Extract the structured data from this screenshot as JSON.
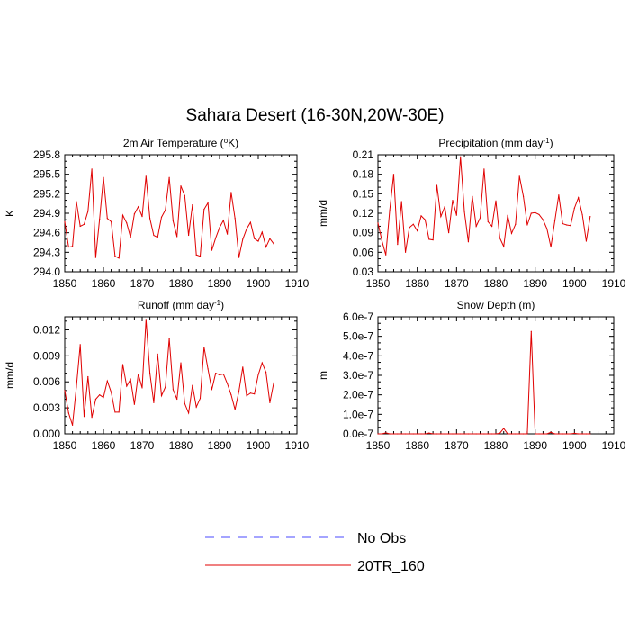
{
  "title": "Sahara Desert (16-30N,20W-30E)",
  "legend": {
    "entries": [
      {
        "label": "No Obs",
        "color": "#4a4aff",
        "dash": true
      },
      {
        "label": "20TR_160",
        "color": "#e00000",
        "dash": false
      }
    ]
  },
  "chart_data": [
    {
      "type": "line",
      "title": "2m Air Temperature (",
      "title_sup": "o",
      "title_end": "K)",
      "ylabel": "K",
      "xlim": [
        1850,
        1910
      ],
      "ylim": [
        294.0,
        295.8
      ],
      "x_ticks": [
        1850,
        1860,
        1870,
        1880,
        1890,
        1900,
        1910
      ],
      "y_ticks": [
        294.0,
        294.3,
        294.6,
        294.9,
        295.2,
        295.5,
        295.8
      ],
      "y_tick_labels": [
        "294.0",
        "294.3",
        "294.6",
        "294.9",
        "295.2",
        "295.5",
        "295.8"
      ],
      "series": [
        {
          "color": "#e00000",
          "x_start": 1850,
          "values": [
            294.77,
            294.38,
            294.39,
            295.08,
            294.7,
            294.73,
            294.93,
            295.58,
            294.22,
            294.81,
            295.45,
            294.82,
            294.77,
            294.24,
            294.21,
            294.87,
            294.75,
            294.53,
            294.89,
            295.0,
            294.85,
            295.47,
            294.82,
            294.56,
            294.53,
            294.84,
            294.95,
            295.45,
            294.78,
            294.54,
            295.32,
            295.17,
            294.56,
            295.03,
            294.26,
            294.24,
            294.96,
            295.06,
            294.33,
            294.52,
            294.68,
            294.79,
            294.58,
            295.22,
            294.82,
            294.22,
            294.5,
            294.66,
            294.76,
            294.51,
            294.47,
            294.61,
            294.38,
            294.51,
            294.43
          ]
        }
      ]
    },
    {
      "type": "line",
      "title": "Precipitation (mm day",
      "title_sup": "-1",
      "title_end": ")",
      "ylabel": "mm/d",
      "xlim": [
        1850,
        1910
      ],
      "ylim": [
        0.03,
        0.21
      ],
      "x_ticks": [
        1850,
        1860,
        1870,
        1880,
        1890,
        1900,
        1910
      ],
      "y_ticks": [
        0.03,
        0.06,
        0.09,
        0.12,
        0.15,
        0.18,
        0.21
      ],
      "y_tick_labels": [
        "0.03",
        "0.06",
        "0.09",
        "0.12",
        "0.15",
        "0.18",
        "0.21"
      ],
      "series": [
        {
          "color": "#e00000",
          "x_start": 1850,
          "values": [
            0.105,
            0.078,
            0.056,
            0.125,
            0.18,
            0.072,
            0.138,
            0.06,
            0.098,
            0.103,
            0.093,
            0.116,
            0.11,
            0.08,
            0.079,
            0.163,
            0.115,
            0.13,
            0.09,
            0.14,
            0.117,
            0.207,
            0.122,
            0.076,
            0.146,
            0.1,
            0.113,
            0.188,
            0.107,
            0.1,
            0.139,
            0.082,
            0.069,
            0.117,
            0.089,
            0.103,
            0.177,
            0.146,
            0.102,
            0.12,
            0.121,
            0.118,
            0.11,
            0.096,
            0.068,
            0.108,
            0.148,
            0.104,
            0.102,
            0.101,
            0.128,
            0.144,
            0.118,
            0.077,
            0.115
          ]
        }
      ]
    },
    {
      "type": "line",
      "title": "Runoff (mm day",
      "title_sup": "-1",
      "title_end": ")",
      "ylabel": "mm/d",
      "xlim": [
        1850,
        1910
      ],
      "ylim": [
        0.0,
        0.0135
      ],
      "x_ticks": [
        1850,
        1860,
        1870,
        1880,
        1890,
        1900,
        1910
      ],
      "y_ticks": [
        0.0,
        0.003,
        0.006,
        0.009,
        0.012
      ],
      "y_tick_labels": [
        "0.000",
        "0.003",
        "0.006",
        "0.009",
        "0.012"
      ],
      "series": [
        {
          "color": "#e00000",
          "x_start": 1850,
          "values": [
            0.005,
            0.0024,
            0.001,
            0.0054,
            0.0103,
            0.002,
            0.0066,
            0.0019,
            0.004,
            0.0045,
            0.0042,
            0.0061,
            0.0048,
            0.0025,
            0.0025,
            0.008,
            0.0055,
            0.0063,
            0.0034,
            0.0069,
            0.0053,
            0.0132,
            0.007,
            0.0036,
            0.0092,
            0.0044,
            0.0054,
            0.011,
            0.0051,
            0.004,
            0.0082,
            0.0035,
            0.0024,
            0.0056,
            0.0031,
            0.0041,
            0.01,
            0.0075,
            0.0051,
            0.007,
            0.0068,
            0.0069,
            0.0058,
            0.0045,
            0.0028,
            0.0049,
            0.0077,
            0.0044,
            0.0047,
            0.0046,
            0.0068,
            0.0082,
            0.0071,
            0.0036,
            0.0059
          ]
        }
      ]
    },
    {
      "type": "line",
      "title": "Snow Depth (m)",
      "title_sup": "",
      "title_end": "",
      "ylabel": "m",
      "xlim": [
        1850,
        1910
      ],
      "ylim": [
        0.0,
        6e-07
      ],
      "x_ticks": [
        1850,
        1860,
        1870,
        1880,
        1890,
        1900,
        1910
      ],
      "y_ticks": [
        0.0,
        1e-07,
        2e-07,
        3e-07,
        4e-07,
        5e-07,
        6e-07
      ],
      "y_tick_labels": [
        "0.0e-7",
        "1.0e-7",
        "2.0e-7",
        "3.0e-7",
        "4.0e-7",
        "5.0e-7",
        "6.0e-7"
      ],
      "series": [
        {
          "color": "#e00000",
          "x_start": 1850,
          "values": [
            0.0,
            0.0,
            5e-09,
            0.0,
            0.0,
            0.0,
            0.0,
            0.0,
            0.0,
            0.0,
            0.0,
            0.0,
            0.0,
            4e-09,
            0.0,
            0.0,
            0.0,
            0.0,
            0.0,
            0.0,
            0.0,
            0.0,
            0.0,
            0.0,
            0.0,
            0.0,
            0.0,
            0.0,
            0.0,
            0.0,
            0.0,
            3e-09,
            2.8e-08,
            0.0,
            0.0,
            0.0,
            0.0,
            0.0,
            0.0,
            5.25e-07,
            0.0,
            0.0,
            0.0,
            0.0,
            8e-09,
            0.0,
            0.0,
            0.0,
            0.0,
            0.0,
            3e-09,
            0.0,
            0.0,
            0.0,
            0.0
          ]
        }
      ]
    }
  ]
}
